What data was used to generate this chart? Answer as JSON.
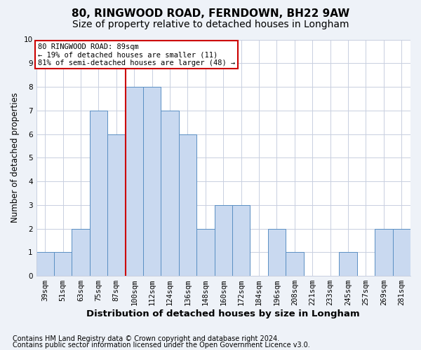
{
  "title1": "80, RINGWOOD ROAD, FERNDOWN, BH22 9AW",
  "title2": "Size of property relative to detached houses in Longham",
  "xlabel": "Distribution of detached houses by size in Longham",
  "ylabel": "Number of detached properties",
  "categories": [
    "39sqm",
    "51sqm",
    "63sqm",
    "75sqm",
    "87sqm",
    "100sqm",
    "112sqm",
    "124sqm",
    "136sqm",
    "148sqm",
    "160sqm",
    "172sqm",
    "184sqm",
    "196sqm",
    "208sqm",
    "221sqm",
    "233sqm",
    "245sqm",
    "257sqm",
    "269sqm",
    "281sqm"
  ],
  "values": [
    1,
    1,
    2,
    7,
    6,
    8,
    8,
    7,
    6,
    2,
    3,
    3,
    0,
    2,
    1,
    0,
    0,
    1,
    0,
    2,
    2
  ],
  "bar_color": "#c9d9f0",
  "bar_edge_color": "#5a8fc3",
  "highlight_index": 4,
  "highlight_line_color": "#cc0000",
  "annotation_line1": "80 RINGWOOD ROAD: 89sqm",
  "annotation_line2": "← 19% of detached houses are smaller (11)",
  "annotation_line3": "81% of semi-detached houses are larger (48) →",
  "annotation_box_color": "#ffffff",
  "annotation_box_edge_color": "#cc0000",
  "ylim": [
    0,
    10
  ],
  "yticks": [
    0,
    1,
    2,
    3,
    4,
    5,
    6,
    7,
    8,
    9,
    10
  ],
  "footnote1": "Contains HM Land Registry data © Crown copyright and database right 2024.",
  "footnote2": "Contains public sector information licensed under the Open Government Licence v3.0.",
  "background_color": "#eef2f8",
  "plot_background_color": "#ffffff",
  "grid_color": "#c8cfe0",
  "title1_fontsize": 11,
  "title2_fontsize": 10,
  "xlabel_fontsize": 9.5,
  "ylabel_fontsize": 8.5,
  "tick_fontsize": 7.5,
  "annotation_fontsize": 7.5,
  "footnote_fontsize": 7
}
